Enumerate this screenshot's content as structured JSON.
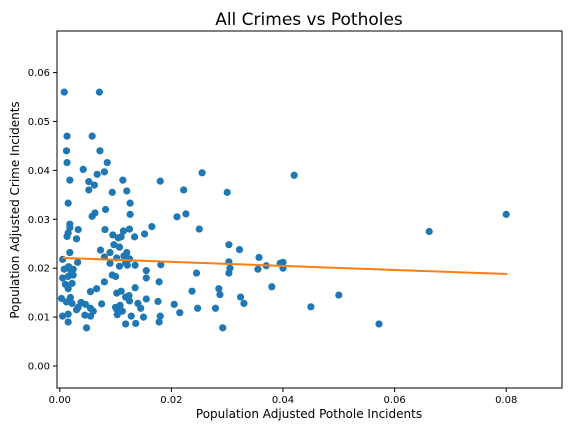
{
  "chart_data": {
    "type": "scatter",
    "title": "All Crimes vs Potholes",
    "xlabel": "Population Adjusted Pothole Incidents",
    "ylabel": "Population Adjusted Crime Incidents",
    "xlim": [
      -0.0005,
      0.09
    ],
    "ylim": [
      -0.0045,
      0.0685
    ],
    "xticks": [
      0.0,
      0.02,
      0.04,
      0.06,
      0.08
    ],
    "xtick_labels": [
      "0.00",
      "0.02",
      "0.04",
      "0.06",
      "0.08"
    ],
    "yticks": [
      0.0,
      0.01,
      0.02,
      0.03,
      0.04,
      0.05,
      0.06
    ],
    "ytick_labels": [
      "0.00",
      "0.01",
      "0.02",
      "0.03",
      "0.04",
      "0.05",
      "0.06"
    ],
    "grid": false,
    "legend": "none",
    "colors": {
      "points": "#1f77b4",
      "fit_line": "#ff7f0e"
    },
    "fit_line": {
      "x": [
        0.0005,
        0.0802
      ],
      "y": [
        0.0221,
        0.0188
      ]
    },
    "series": [
      {
        "values": [
          [
            0.0008,
            0.056
          ],
          [
            0.0071,
            0.056
          ],
          [
            0.0013,
            0.047
          ],
          [
            0.0058,
            0.047
          ],
          [
            0.0012,
            0.044
          ],
          [
            0.0072,
            0.044
          ],
          [
            0.0013,
            0.0416
          ],
          [
            0.0085,
            0.0416
          ],
          [
            0.0042,
            0.0402
          ],
          [
            0.008,
            0.0397
          ],
          [
            0.0067,
            0.0392
          ],
          [
            0.0255,
            0.0395
          ],
          [
            0.042,
            0.039
          ],
          [
            0.0018,
            0.038
          ],
          [
            0.0052,
            0.0377
          ],
          [
            0.0113,
            0.038
          ],
          [
            0.0062,
            0.037
          ],
          [
            0.0052,
            0.036
          ],
          [
            0.0094,
            0.0355
          ],
          [
            0.012,
            0.0358
          ],
          [
            0.018,
            0.0378
          ],
          [
            0.0222,
            0.036
          ],
          [
            0.03,
            0.0355
          ],
          [
            0.0126,
            0.0333
          ],
          [
            0.0015,
            0.0333
          ],
          [
            0.0082,
            0.032
          ],
          [
            0.0063,
            0.0313
          ],
          [
            0.0058,
            0.0306
          ],
          [
            0.0126,
            0.031
          ],
          [
            0.021,
            0.0305
          ],
          [
            0.0226,
            0.0311
          ],
          [
            0.08,
            0.031
          ],
          [
            0.0018,
            0.029
          ],
          [
            0.0018,
            0.0283
          ],
          [
            0.0015,
            0.0272
          ],
          [
            0.0033,
            0.0279
          ],
          [
            0.0081,
            0.0279
          ],
          [
            0.0114,
            0.0276
          ],
          [
            0.0125,
            0.028
          ],
          [
            0.0165,
            0.0285
          ],
          [
            0.025,
            0.028
          ],
          [
            0.0662,
            0.0275
          ],
          [
            0.0013,
            0.0265
          ],
          [
            0.003,
            0.026
          ],
          [
            0.0095,
            0.0268
          ],
          [
            0.0105,
            0.0262
          ],
          [
            0.011,
            0.0264
          ],
          [
            0.0134,
            0.0264
          ],
          [
            0.0152,
            0.027
          ],
          [
            0.0097,
            0.0248
          ],
          [
            0.0303,
            0.0248
          ],
          [
            0.0073,
            0.0237
          ],
          [
            0.0018,
            0.0232
          ],
          [
            0.009,
            0.0232
          ],
          [
            0.0107,
            0.0243
          ],
          [
            0.012,
            0.0232
          ],
          [
            0.0322,
            0.0238
          ],
          [
            0.0005,
            0.0218
          ],
          [
            0.008,
            0.0223
          ],
          [
            0.0102,
            0.0221
          ],
          [
            0.0115,
            0.0225
          ],
          [
            0.0125,
            0.0219
          ],
          [
            0.0032,
            0.0212
          ],
          [
            0.009,
            0.021
          ],
          [
            0.0107,
            0.0204
          ],
          [
            0.0118,
            0.0211
          ],
          [
            0.0121,
            0.0206
          ],
          [
            0.0135,
            0.0206
          ],
          [
            0.0181,
            0.0207
          ],
          [
            0.0303,
            0.0213
          ],
          [
            0.0357,
            0.0222
          ],
          [
            0.0395,
            0.021
          ],
          [
            0.04,
            0.0212
          ],
          [
            0.0008,
            0.0198
          ],
          [
            0.0016,
            0.0203
          ],
          [
            0.002,
            0.0195
          ],
          [
            0.0024,
            0.0198
          ],
          [
            0.0155,
            0.0195
          ],
          [
            0.0305,
            0.02
          ],
          [
            0.037,
            0.0205
          ],
          [
            0.0355,
            0.0198
          ],
          [
            0.04,
            0.02
          ],
          [
            0.0005,
            0.018
          ],
          [
            0.0015,
            0.0183
          ],
          [
            0.0024,
            0.0186
          ],
          [
            0.0094,
            0.0186
          ],
          [
            0.01,
            0.0183
          ],
          [
            0.008,
            0.0172
          ],
          [
            0.0155,
            0.018
          ],
          [
            0.0245,
            0.019
          ],
          [
            0.0303,
            0.019
          ],
          [
            0.001,
            0.0167
          ],
          [
            0.0022,
            0.0169
          ],
          [
            0.0135,
            0.016
          ],
          [
            0.0178,
            0.0172
          ],
          [
            0.0237,
            0.0153
          ],
          [
            0.0285,
            0.0158
          ],
          [
            0.038,
            0.0162
          ],
          [
            0.0015,
            0.0158
          ],
          [
            0.0066,
            0.0158
          ],
          [
            0.0055,
            0.0152
          ],
          [
            0.0102,
            0.0149
          ],
          [
            0.011,
            0.0153
          ],
          [
            0.0118,
            0.0141
          ],
          [
            0.0124,
            0.0144
          ],
          [
            0.0003,
            0.0138
          ],
          [
            0.0019,
            0.014
          ],
          [
            0.0155,
            0.0137
          ],
          [
            0.0287,
            0.0146
          ],
          [
            0.0324,
            0.0141
          ],
          [
            0.05,
            0.0145
          ],
          [
            0.0012,
            0.0131
          ],
          [
            0.0022,
            0.0128
          ],
          [
            0.0038,
            0.013
          ],
          [
            0.0046,
            0.0126
          ],
          [
            0.0075,
            0.0127
          ],
          [
            0.01,
            0.012
          ],
          [
            0.0108,
            0.0124
          ],
          [
            0.0125,
            0.0133
          ],
          [
            0.014,
            0.0128
          ],
          [
            0.0176,
            0.0132
          ],
          [
            0.0205,
            0.0126
          ],
          [
            0.0247,
            0.0118
          ],
          [
            0.0279,
            0.0118
          ],
          [
            0.033,
            0.0128
          ],
          [
            0.045,
            0.0121
          ],
          [
            0.003,
            0.0115
          ],
          [
            0.0033,
            0.012
          ],
          [
            0.0055,
            0.0118
          ],
          [
            0.006,
            0.0112
          ],
          [
            0.0102,
            0.0116
          ],
          [
            0.0112,
            0.0112
          ],
          [
            0.0145,
            0.0118
          ],
          [
            0.0215,
            0.0109
          ],
          [
            0.0005,
            0.0102
          ],
          [
            0.0015,
            0.0106
          ],
          [
            0.0045,
            0.0104
          ],
          [
            0.0055,
            0.0102
          ],
          [
            0.0103,
            0.0105
          ],
          [
            0.0128,
            0.0102
          ],
          [
            0.015,
            0.01
          ],
          [
            0.018,
            0.0102
          ],
          [
            0.0015,
            0.009
          ],
          [
            0.0118,
            0.0086
          ],
          [
            0.0136,
            0.0087
          ],
          [
            0.0178,
            0.009
          ],
          [
            0.0048,
            0.0078
          ],
          [
            0.0292,
            0.0078
          ],
          [
            0.0572,
            0.0086
          ]
        ]
      }
    ]
  }
}
